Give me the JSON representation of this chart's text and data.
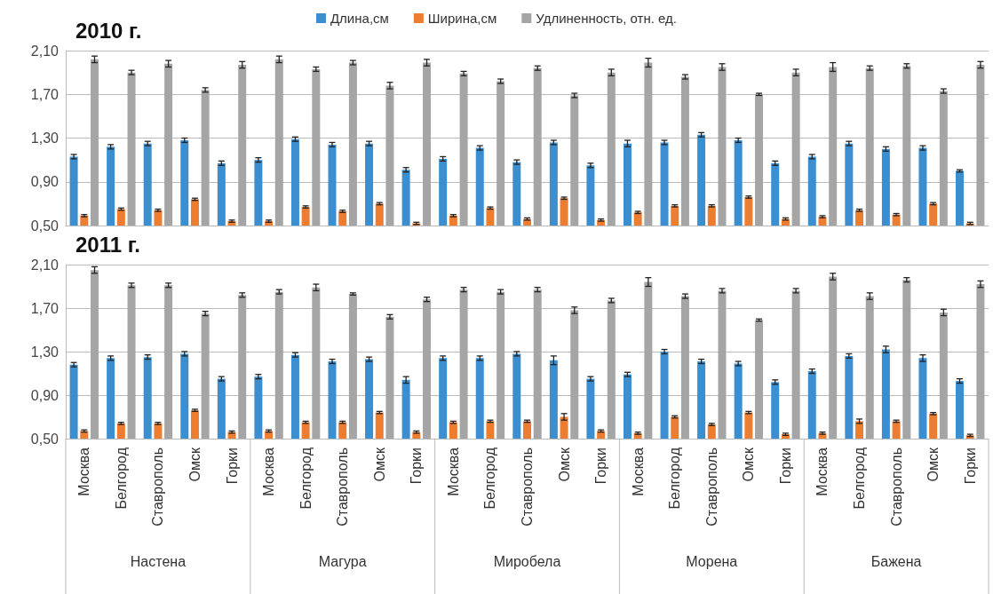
{
  "chart_data": [
    {
      "type": "bar",
      "title": "2010 г.",
      "legend": "top",
      "grid": "y",
      "tick_labels": "y",
      "categories": [
        null,
        null,
        null,
        null,
        null,
        null,
        null,
        null,
        null,
        null,
        null,
        null,
        null,
        null,
        null,
        null,
        null,
        null,
        null,
        null,
        null,
        null,
        null,
        null,
        null
      ],
      "ylim": [
        0.5,
        2.1
      ],
      "yticks": [
        {
          "value": 0.5,
          "label": "0,50"
        },
        {
          "value": 0.9,
          "label": "0,90"
        },
        {
          "value": 1.3,
          "label": "1,30"
        },
        {
          "value": 1.7,
          "label": "1,70"
        },
        {
          "value": 2.1,
          "label": "2,10"
        }
      ],
      "series": [
        {
          "name": "Длина,см",
          "color": "#3b8fd0",
          "values": [
            1.13,
            1.22,
            1.25,
            1.28,
            1.07,
            1.1,
            1.29,
            1.24,
            1.25,
            1.01,
            1.11,
            1.21,
            1.08,
            1.26,
            1.05,
            1.25,
            1.26,
            1.33,
            1.28,
            1.07,
            1.13,
            1.25,
            1.2,
            1.21,
            1
          ],
          "errors": [
            0.02,
            0.02,
            0.02,
            0.02,
            0.02,
            0.02,
            0.02,
            0.02,
            0.02,
            0.02,
            0.02,
            0.02,
            0.02,
            0.02,
            0.02,
            0.03,
            0.02,
            0.02,
            0.02,
            0.02,
            0.02,
            0.02,
            0.02,
            0.02,
            0.01
          ]
        },
        {
          "name": "Ширина,см",
          "color": "#ed7d31",
          "values": [
            0.59,
            0.65,
            0.64,
            0.74,
            0.54,
            0.54,
            0.67,
            0.63,
            0.7,
            0.52,
            0.59,
            0.66,
            0.56,
            0.75,
            0.55,
            0.62,
            0.68,
            0.68,
            0.76,
            0.56,
            0.58,
            0.64,
            0.6,
            0.7,
            0.52
          ],
          "errors": [
            0.01,
            0.01,
            0.01,
            0.01,
            0.01,
            0.01,
            0.01,
            0.01,
            0.01,
            0.01,
            0.01,
            0.01,
            0.01,
            0.01,
            0.01,
            0.01,
            0.01,
            0.01,
            0.01,
            0.01,
            0.01,
            0.01,
            0.01,
            0.01,
            0.01
          ]
        },
        {
          "name": "Удлиненность, отн. ед.",
          "color": "#a5a5a5",
          "values": [
            2.02,
            1.9,
            1.98,
            1.74,
            1.97,
            2.02,
            1.93,
            1.99,
            1.78,
            1.99,
            1.89,
            1.82,
            1.94,
            1.69,
            1.9,
            1.99,
            1.86,
            1.95,
            1.7,
            1.9,
            1.95,
            1.94,
            1.96,
            1.73,
            1.97
          ],
          "errors": [
            0.03,
            0.02,
            0.03,
            0.02,
            0.03,
            0.03,
            0.02,
            0.02,
            0.03,
            0.03,
            0.02,
            0.02,
            0.02,
            0.02,
            0.03,
            0.04,
            0.02,
            0.03,
            0.01,
            0.03,
            0.04,
            0.02,
            0.02,
            0.02,
            0.03
          ]
        }
      ]
    },
    {
      "type": "bar",
      "title": "2011 г.",
      "legend": false,
      "grid": "y",
      "categories": [
        "Москва",
        "Белгород",
        "Ставрополь",
        "Омск",
        "Горки",
        "Москва",
        "Белгород",
        "Ставрополь",
        "Омск",
        "Горки",
        "Москва",
        "Белгород",
        "Ставрополь",
        "Омск",
        "Горки",
        "Москва",
        "Белгород",
        "Ставрополь",
        "Омск",
        "Горки",
        "Москва",
        "Белгород",
        "Ставрополь",
        "Омск",
        "Горки"
      ],
      "annotations": [
        "Настена",
        "Магура",
        "Миробела",
        "Морена",
        "Бажена"
      ],
      "ylim": [
        0.5,
        2.1
      ],
      "yticks": [
        {
          "value": 0.5,
          "label": "0,50"
        },
        {
          "value": 0.9,
          "label": "0,90"
        },
        {
          "value": 1.3,
          "label": "1,30"
        },
        {
          "value": 1.7,
          "label": "1,70"
        },
        {
          "value": 2.1,
          "label": "2,10"
        }
      ],
      "series": [
        {
          "color": "#3b8fd0",
          "values": [
            1.18,
            1.24,
            1.25,
            1.28,
            1.05,
            1.07,
            1.27,
            1.21,
            1.23,
            1.04,
            1.24,
            1.24,
            1.28,
            1.22,
            1.05,
            1.09,
            1.3,
            1.21,
            1.19,
            1.02,
            1.12,
            1.26,
            1.32,
            1.24,
            1.03
          ],
          "errors": [
            0.02,
            0.02,
            0.02,
            0.02,
            0.02,
            0.02,
            0.02,
            0.02,
            0.02,
            0.03,
            0.02,
            0.02,
            0.02,
            0.04,
            0.02,
            0.02,
            0.02,
            0.02,
            0.02,
            0.02,
            0.02,
            0.02,
            0.03,
            0.03,
            0.02
          ]
        },
        {
          "color": "#ed7d31",
          "values": [
            0.57,
            0.64,
            0.64,
            0.76,
            0.56,
            0.57,
            0.65,
            0.65,
            0.74,
            0.56,
            0.65,
            0.66,
            0.66,
            0.7,
            0.57,
            0.55,
            0.7,
            0.63,
            0.74,
            0.54,
            0.55,
            0.66,
            0.66,
            0.73,
            0.53
          ],
          "errors": [
            0.01,
            0.01,
            0.01,
            0.01,
            0.01,
            0.01,
            0.01,
            0.01,
            0.01,
            0.01,
            0.01,
            0.01,
            0.01,
            0.03,
            0.01,
            0.01,
            0.01,
            0.01,
            0.01,
            0.01,
            0.01,
            0.02,
            0.01,
            0.01,
            0.01
          ]
        },
        {
          "color": "#a5a5a5",
          "values": [
            2.05,
            1.91,
            1.91,
            1.65,
            1.82,
            1.85,
            1.89,
            1.83,
            1.62,
            1.78,
            1.87,
            1.85,
            1.87,
            1.68,
            1.77,
            1.94,
            1.81,
            1.86,
            1.59,
            1.86,
            1.99,
            1.81,
            1.96,
            1.66,
            1.92
          ],
          "errors": [
            0.03,
            0.02,
            0.02,
            0.02,
            0.02,
            0.02,
            0.03,
            0.01,
            0.02,
            0.02,
            0.02,
            0.02,
            0.02,
            0.03,
            0.02,
            0.04,
            0.02,
            0.02,
            0.01,
            0.02,
            0.03,
            0.03,
            0.02,
            0.03,
            0.03
          ]
        }
      ]
    }
  ]
}
